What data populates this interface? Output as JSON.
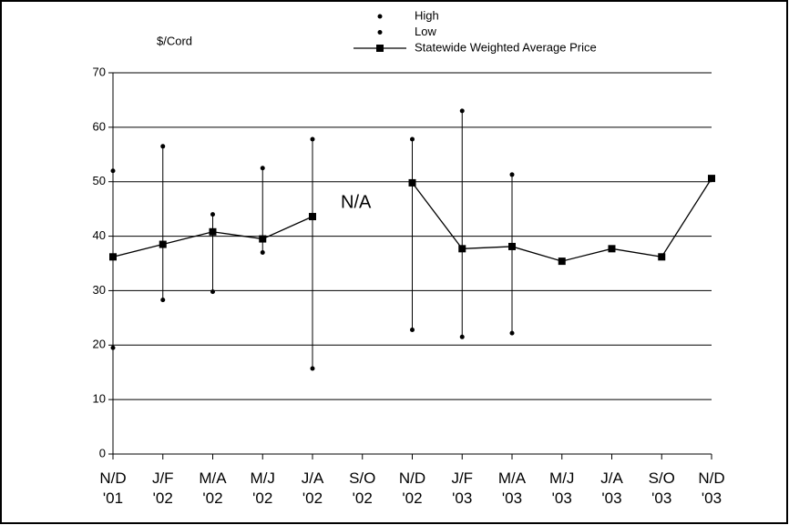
{
  "chart_data": {
    "type": "line",
    "y_label": "$/Cord",
    "annotation": "N/A",
    "categories": [
      "N/D\n'01",
      "J/F\n'02",
      "M/A\n'02",
      "M/J\n'02",
      "J/A\n'02",
      "S/O\n'02",
      "N/D\n'02",
      "J/F\n'03",
      "M/A\n'03",
      "M/J\n'03",
      "J/A\n'03",
      "S/O\n'03",
      "N/D\n'03"
    ],
    "series": [
      {
        "name": "High",
        "color": "#000000",
        "marker": "dot",
        "values": [
          52,
          56.5,
          44,
          52.5,
          57.8,
          null,
          57.8,
          63,
          51.3,
          null,
          null,
          null,
          null
        ]
      },
      {
        "name": "Low",
        "color": "#000000",
        "marker": "dot",
        "values": [
          19.5,
          28.3,
          29.8,
          37,
          15.7,
          null,
          22.8,
          21.5,
          22.2,
          null,
          null,
          null,
          null
        ]
      },
      {
        "name": "Statewide Weighted Average Price",
        "color": "#000000",
        "marker": "square",
        "values": [
          36.2,
          38.5,
          40.8,
          39.5,
          43.6,
          null,
          49.8,
          37.7,
          38.1,
          35.4,
          37.7,
          36.2,
          50.6
        ]
      }
    ],
    "ylim": [
      0,
      70
    ],
    "yticks": [
      0,
      10,
      20,
      30,
      40,
      50,
      60,
      70
    ],
    "grid": true
  }
}
